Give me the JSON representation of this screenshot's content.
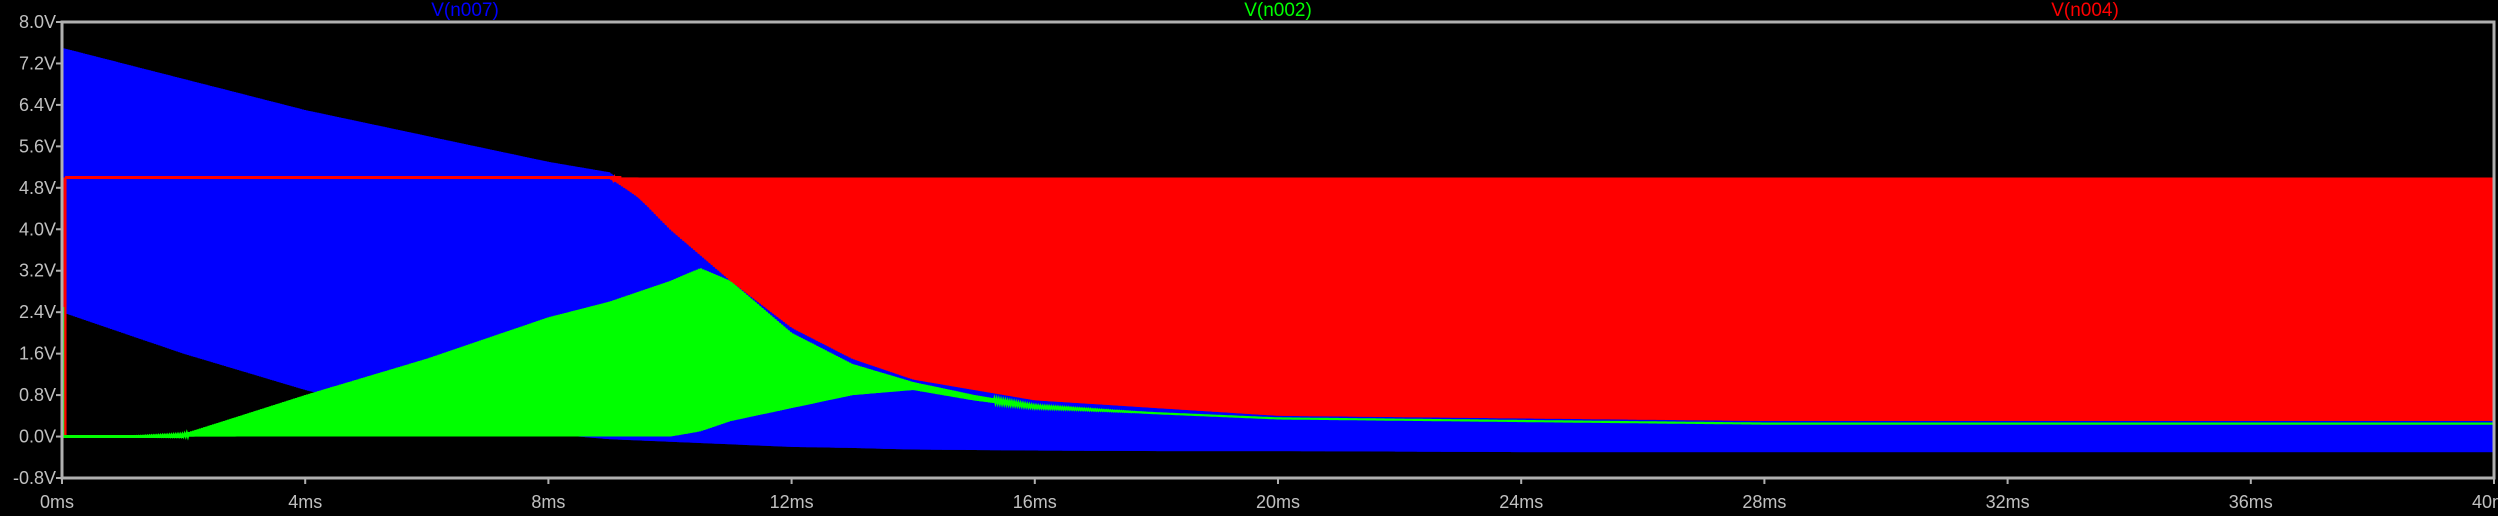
{
  "colors": {
    "background": "#000000",
    "frame": "#b0b0b0",
    "grid": "#3a3a3a",
    "tick_text": "#c0c0c0"
  },
  "chart_data": {
    "type": "line",
    "title": "",
    "xlabel": "",
    "ylabel": "",
    "xlim": [
      0,
      40
    ],
    "ylim": [
      -0.8,
      8.0
    ],
    "grid": false,
    "legend": "top",
    "y_ticks": [
      "8.0V",
      "7.2V",
      "6.4V",
      "5.6V",
      "4.8V",
      "4.0V",
      "3.2V",
      "2.4V",
      "1.6V",
      "0.8V",
      "0.0V",
      "-0.8V"
    ],
    "y_tick_values": [
      8.0,
      7.2,
      6.4,
      5.6,
      4.8,
      4.0,
      3.2,
      2.4,
      1.6,
      0.8,
      0.0,
      -0.8
    ],
    "x_ticks": [
      "0ms",
      "4ms",
      "8ms",
      "12ms",
      "16ms",
      "20ms",
      "24ms",
      "28ms",
      "32ms",
      "36ms",
      "40ms"
    ],
    "x_tick_values": [
      0,
      4,
      8,
      12,
      16,
      20,
      24,
      28,
      32,
      36,
      40
    ],
    "series": [
      {
        "name": "V(n007)",
        "color": "#0000ff",
        "envelope_x": [
          0,
          2,
          4,
          6,
          8,
          9,
          10,
          11,
          12,
          13,
          14,
          16,
          18,
          20,
          24,
          28,
          32,
          36,
          40
        ],
        "upper": [
          7.5,
          6.9,
          6.3,
          5.8,
          5.3,
          5.1,
          4.3,
          3.2,
          2.3,
          1.6,
          1.2,
          0.75,
          0.55,
          0.45,
          0.35,
          0.3,
          0.3,
          0.3,
          0.3
        ],
        "lower": [
          2.4,
          1.6,
          0.9,
          0.3,
          0.05,
          -0.05,
          -0.1,
          -0.15,
          -0.2,
          -0.22,
          -0.25,
          -0.27,
          -0.28,
          -0.28,
          -0.3,
          -0.3,
          -0.3,
          -0.3,
          -0.3
        ]
      },
      {
        "name": "V(n002)",
        "color": "#00ff00",
        "envelope_x": [
          0,
          1,
          2,
          4,
          6,
          8,
          9,
          10,
          10.5,
          11,
          12,
          13,
          14,
          15,
          16,
          18,
          20,
          24,
          28,
          32,
          36,
          40
        ],
        "upper": [
          0.0,
          0.0,
          0.05,
          0.8,
          1.5,
          2.3,
          2.6,
          3.0,
          3.25,
          3.0,
          2.0,
          1.4,
          1.05,
          0.8,
          0.6,
          0.45,
          0.35,
          0.3,
          0.25,
          0.25,
          0.25,
          0.25
        ],
        "lower": [
          0.0,
          0.0,
          0.0,
          0.0,
          0.0,
          0.0,
          0.0,
          0.0,
          0.1,
          0.3,
          0.55,
          0.8,
          0.9,
          0.7,
          0.55,
          0.45,
          0.35,
          0.3,
          0.25,
          0.25,
          0.25,
          0.25
        ]
      },
      {
        "name": "V(n004)",
        "color": "#ff0000",
        "envelope_x": [
          0.05,
          9,
          9.5,
          10,
          11,
          12,
          13,
          14,
          16,
          20,
          24,
          28,
          32,
          36,
          40
        ],
        "upper": [
          5.0,
          5.0,
          5.0,
          5.0,
          5.0,
          5.0,
          5.0,
          5.0,
          5.0,
          5.0,
          5.0,
          5.0,
          5.0,
          5.0,
          5.0
        ],
        "lower": [
          5.0,
          5.0,
          4.6,
          4.0,
          3.0,
          2.1,
          1.5,
          1.1,
          0.7,
          0.4,
          0.35,
          0.3,
          0.3,
          0.3,
          0.3
        ]
      }
    ]
  }
}
